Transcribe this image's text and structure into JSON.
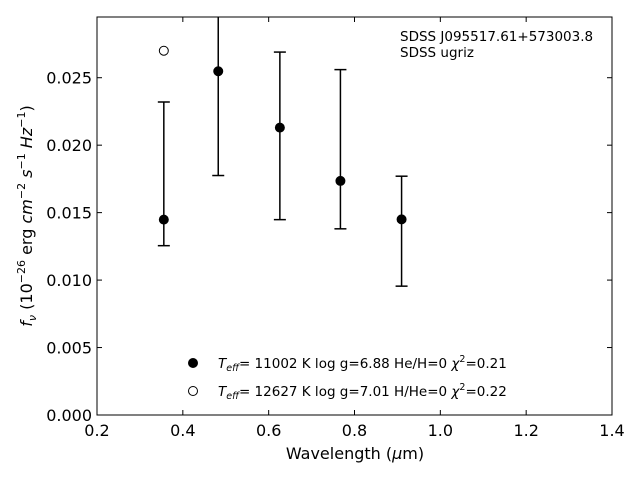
{
  "chart_data": {
    "type": "scatter",
    "xlabel_main": "Wavelength (",
    "xlabel_unit_sym": "μ",
    "xlabel_unit_rest": "m)",
    "ylabel": {
      "f": "f",
      "nu": "ν",
      "open": " (10",
      "exp": "−26",
      "erg": " erg ",
      "cm": "cm",
      "cm_exp": "−2",
      "s": " s",
      "s_exp": "−1",
      "hz": " Hz",
      "hz_exp": "−1",
      "close": ")"
    },
    "annotation_line1": "SDSS J095517.61+573003.8",
    "annotation_line2": "SDSS ugriz",
    "xlim": [
      0.2,
      1.4
    ],
    "ylim": [
      0.0,
      0.0295
    ],
    "xticks": [
      "0.2",
      "0.4",
      "0.6",
      "0.8",
      "1.0",
      "1.2",
      "1.4"
    ],
    "xtick_values": [
      0.2,
      0.4,
      0.6,
      0.8,
      1.0,
      1.2,
      1.4
    ],
    "yticks": [
      "0.000",
      "0.005",
      "0.010",
      "0.015",
      "0.020",
      "0.025"
    ],
    "ytick_values": [
      0.0,
      0.005,
      0.01,
      0.015,
      0.02,
      0.025
    ],
    "series": [
      {
        "marker": "filled",
        "legend": {
          "teff_sym": "T",
          "teff_sub": "eff",
          "teff_val": "= 11002 K  log g=6.88  He/H=0  ",
          "chi": "χ",
          "chi_exp": "2",
          "chi_val": "=0.21"
        },
        "points": [
          {
            "x": 0.3557,
            "y": 0.01448,
            "ylo": 0.01255,
            "yhi": 0.0232
          },
          {
            "x": 0.4825,
            "y": 0.02548,
            "ylo": 0.01775,
            "yhi": 0.0299
          },
          {
            "x": 0.6261,
            "y": 0.0213,
            "ylo": 0.01448,
            "yhi": 0.0269
          },
          {
            "x": 0.7672,
            "y": 0.01735,
            "ylo": 0.0138,
            "yhi": 0.0256
          },
          {
            "x": 0.9097,
            "y": 0.0145,
            "ylo": 0.00955,
            "yhi": 0.0177
          }
        ]
      },
      {
        "marker": "open",
        "legend": {
          "teff_sym": "T",
          "teff_sub": "eff",
          "teff_val": "= 12627 K  log g=7.01  H/He=0  ",
          "chi": "χ",
          "chi_exp": "2",
          "chi_val": "=0.22"
        },
        "points": [
          {
            "x": 0.3557,
            "y": 0.027
          }
        ]
      }
    ],
    "grid": false,
    "legend_position": "lower-center"
  }
}
